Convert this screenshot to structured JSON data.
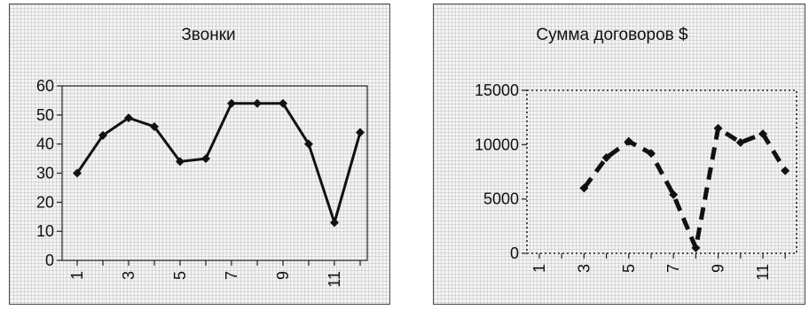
{
  "chart_data": [
    {
      "type": "line",
      "title": "Звонки",
      "xlabel": "",
      "ylabel": "",
      "categories": [
        "1",
        "2",
        "3",
        "4",
        "5",
        "6",
        "7",
        "8",
        "9",
        "10",
        "11",
        "12"
      ],
      "x_tick_labels": [
        "1",
        "3",
        "5",
        "7",
        "9",
        "11"
      ],
      "y_tick_labels": [
        "0",
        "10",
        "20",
        "30",
        "40",
        "50",
        "60"
      ],
      "ylim": [
        0,
        60
      ],
      "grid": true,
      "line_style": "solid",
      "series": [
        {
          "values": [
            30,
            43,
            49,
            46,
            34,
            35,
            54,
            54,
            54,
            40,
            13,
            44
          ]
        }
      ]
    },
    {
      "type": "line",
      "title": "Сумма договоров $",
      "xlabel": "",
      "ylabel": "",
      "categories": [
        "1",
        "2",
        "3",
        "4",
        "5",
        "6",
        "7",
        "8",
        "9",
        "10",
        "11",
        "12"
      ],
      "x_tick_labels": [
        "1",
        "3",
        "5",
        "7",
        "9",
        "11"
      ],
      "y_tick_labels": [
        "0",
        "5000",
        "10000",
        "15000"
      ],
      "ylim": [
        0,
        15000
      ],
      "grid": true,
      "line_style": "dashed",
      "series": [
        {
          "values": [
            null,
            null,
            6000,
            8800,
            10300,
            9200,
            5400,
            500,
            11500,
            10200,
            11000,
            7600
          ]
        }
      ]
    }
  ]
}
